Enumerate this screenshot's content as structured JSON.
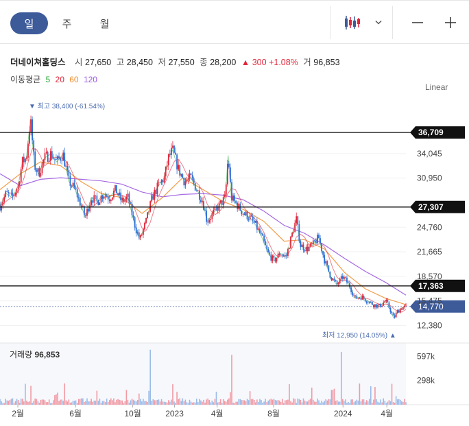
{
  "toolbar": {
    "period_tabs": [
      "일",
      "주",
      "월"
    ],
    "active_tab": 0,
    "icons": [
      "candlestick-icon",
      "chevron-down-icon",
      "minus-icon",
      "plus-icon"
    ]
  },
  "stock": {
    "name": "더네이쳐홀딩스",
    "open_label": "시",
    "open": "27,650",
    "high_label": "고",
    "high": "28,450",
    "low_label": "저",
    "low": "27,550",
    "close_label": "종",
    "close": "28,200",
    "change": "▲ 300",
    "change_pct": "+1.08%",
    "volume_label": "거",
    "volume": "96,853"
  },
  "moving_average": {
    "label": "이동평균",
    "periods": [
      {
        "value": "5",
        "color": "#2aa63a"
      },
      {
        "value": "20",
        "color": "#e0263a"
      },
      {
        "value": "60",
        "color": "#f08c2a"
      },
      {
        "value": "120",
        "color": "#9b59e0"
      }
    ]
  },
  "scale_mode": "Linear",
  "annotations": {
    "high": "▼ 최고 38,400 (-61.54%)",
    "low": "최저 12,950 (14.05%) ▲"
  },
  "volume_panel": {
    "label": "거래량",
    "value": "96,853",
    "ticks": [
      "597k",
      "298k"
    ]
  },
  "chart_data": {
    "type": "candlestick",
    "price_ticks": [
      34045,
      30950,
      24760,
      21665,
      18570,
      15475,
      12380
    ],
    "price_tick_labels": [
      "34,045",
      "30,950",
      "24,760",
      "21,665",
      "18,570",
      "15,475",
      "12,380"
    ],
    "ylim": [
      10600,
      41300
    ],
    "horizontal_lines": [
      {
        "value": 36709,
        "label": "36,709"
      },
      {
        "value": 27307,
        "label": "27,307"
      },
      {
        "value": 17363,
        "label": "17,363"
      }
    ],
    "current_price": {
      "value": 14770,
      "label": "14,770"
    },
    "x_ticks": [
      "2월",
      "6월",
      "10월",
      "2023",
      "4월",
      "8월",
      "2024",
      "4월"
    ],
    "x_tick_positions": [
      0.044,
      0.186,
      0.327,
      0.43,
      0.535,
      0.674,
      0.845,
      0.953
    ],
    "close_path": [
      [
        0.0,
        27500
      ],
      [
        0.015,
        29000
      ],
      [
        0.03,
        28500
      ],
      [
        0.045,
        30000
      ],
      [
        0.055,
        33000
      ],
      [
        0.065,
        33500
      ],
      [
        0.075,
        38400
      ],
      [
        0.085,
        32500
      ],
      [
        0.095,
        31500
      ],
      [
        0.11,
        33500
      ],
      [
        0.125,
        34000
      ],
      [
        0.14,
        33000
      ],
      [
        0.155,
        34000
      ],
      [
        0.17,
        30500
      ],
      [
        0.185,
        29500
      ],
      [
        0.2,
        27500
      ],
      [
        0.21,
        26000
      ],
      [
        0.225,
        28500
      ],
      [
        0.24,
        28000
      ],
      [
        0.255,
        29000
      ],
      [
        0.27,
        28500
      ],
      [
        0.285,
        29500
      ],
      [
        0.3,
        28000
      ],
      [
        0.315,
        28500
      ],
      [
        0.325,
        26500
      ],
      [
        0.335,
        24500
      ],
      [
        0.345,
        23200
      ],
      [
        0.36,
        25500
      ],
      [
        0.375,
        28500
      ],
      [
        0.39,
        30000
      ],
      [
        0.405,
        31000
      ],
      [
        0.415,
        33500
      ],
      [
        0.425,
        34500
      ],
      [
        0.44,
        32000
      ],
      [
        0.455,
        30500
      ],
      [
        0.47,
        31000
      ],
      [
        0.485,
        29500
      ],
      [
        0.5,
        28000
      ],
      [
        0.51,
        25500
      ],
      [
        0.525,
        26500
      ],
      [
        0.54,
        27500
      ],
      [
        0.555,
        28500
      ],
      [
        0.562,
        33800
      ],
      [
        0.57,
        28500
      ],
      [
        0.585,
        27500
      ],
      [
        0.6,
        26500
      ],
      [
        0.615,
        26000
      ],
      [
        0.63,
        25000
      ],
      [
        0.645,
        23500
      ],
      [
        0.66,
        21500
      ],
      [
        0.675,
        20500
      ],
      [
        0.69,
        21500
      ],
      [
        0.705,
        21000
      ],
      [
        0.715,
        23000
      ],
      [
        0.73,
        25800
      ],
      [
        0.74,
        22500
      ],
      [
        0.755,
        22000
      ],
      [
        0.77,
        22500
      ],
      [
        0.785,
        23500
      ],
      [
        0.8,
        20500
      ],
      [
        0.815,
        18500
      ],
      [
        0.83,
        17500
      ],
      [
        0.845,
        18500
      ],
      [
        0.86,
        17500
      ],
      [
        0.875,
        15800
      ],
      [
        0.89,
        16000
      ],
      [
        0.905,
        15500
      ],
      [
        0.92,
        15000
      ],
      [
        0.935,
        14800
      ],
      [
        0.95,
        15500
      ],
      [
        0.96,
        14500
      ],
      [
        0.97,
        13300
      ],
      [
        0.98,
        14200
      ],
      [
        0.99,
        14600
      ],
      [
        1.0,
        14770
      ]
    ],
    "series": [
      {
        "name": "5",
        "color": "#2aa63a"
      },
      {
        "name": "20",
        "color": "#e0263a"
      },
      {
        "name": "60",
        "color": "#f08c2a"
      },
      {
        "name": "120",
        "color": "#9b59e0"
      }
    ],
    "ma120_path": [
      [
        0.0,
        31500
      ],
      [
        0.05,
        30000
      ],
      [
        0.1,
        30800
      ],
      [
        0.15,
        31000
      ],
      [
        0.2,
        30800
      ],
      [
        0.25,
        30600
      ],
      [
        0.3,
        30200
      ],
      [
        0.35,
        29200
      ],
      [
        0.4,
        28600
      ],
      [
        0.45,
        28900
      ],
      [
        0.5,
        29000
      ],
      [
        0.55,
        28800
      ],
      [
        0.6,
        28200
      ],
      [
        0.65,
        26800
      ],
      [
        0.7,
        25000
      ],
      [
        0.75,
        24000
      ],
      [
        0.8,
        22500
      ],
      [
        0.85,
        20800
      ],
      [
        0.9,
        19200
      ],
      [
        0.95,
        17800
      ],
      [
        1.0,
        16200
      ]
    ],
    "ma60_path": [
      [
        0.0,
        29500
      ],
      [
        0.05,
        31500
      ],
      [
        0.1,
        33000
      ],
      [
        0.15,
        32500
      ],
      [
        0.2,
        30500
      ],
      [
        0.25,
        29000
      ],
      [
        0.3,
        28500
      ],
      [
        0.35,
        26500
      ],
      [
        0.4,
        28500
      ],
      [
        0.45,
        31000
      ],
      [
        0.5,
        29500
      ],
      [
        0.55,
        28000
      ],
      [
        0.6,
        27000
      ],
      [
        0.65,
        25500
      ],
      [
        0.7,
        23000
      ],
      [
        0.75,
        23200
      ],
      [
        0.8,
        22000
      ],
      [
        0.85,
        19000
      ],
      [
        0.9,
        17000
      ],
      [
        0.95,
        15800
      ],
      [
        1.0,
        15000
      ]
    ],
    "volume_ticks": [
      597000,
      298000
    ],
    "volume_ylim": [
      0,
      760000
    ]
  }
}
